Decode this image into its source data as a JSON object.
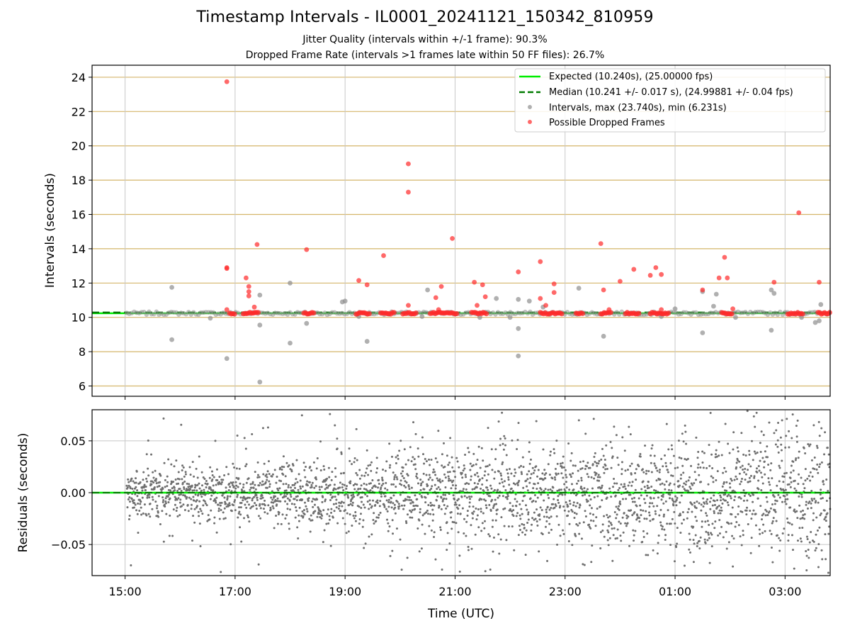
{
  "header": {
    "title": "Timestamp Intervals - IL0001_20241121_150342_810959",
    "subtitle_jitter": "Jitter Quality (intervals within +/-1 frame): 90.3%",
    "subtitle_dropped": "Dropped Frame Rate (intervals >1 frames late within 50 FF files): 26.7%"
  },
  "colors": {
    "expected": "#00ee00",
    "median": "#007a00",
    "intervals": "#8f8f8f",
    "dropped": "#ff2a2a",
    "ygrid_top": "#d4b56a",
    "grid": "#c8c8c8",
    "residuals": "#6f6f6f"
  },
  "chart_data": [
    {
      "type": "scatter",
      "ylabel": "Intervals (seconds)",
      "ylim": [
        5.4,
        24.7
      ],
      "yticks": [
        6,
        8,
        10,
        12,
        14,
        16,
        18,
        20,
        22,
        24
      ],
      "ytick_labels": [
        "6",
        "8",
        "10",
        "12",
        "14",
        "16",
        "18",
        "20",
        "22",
        "24"
      ],
      "x_range_hours": [
        14.4,
        27.82
      ],
      "xticks": [
        15,
        17,
        19,
        21,
        23,
        25,
        27
      ],
      "grid": true,
      "legend_placement": "top-right",
      "legend": [
        "Expected (10.240s), (25.00000 fps)",
        "Median (10.241 +/- 0.017 s), (24.99881 +/- 0.04 fps)",
        "Intervals, max (23.740s), min (6.231s)",
        "Possible Dropped Frames"
      ],
      "expected_line": 10.24,
      "median_line": 10.241,
      "interval_outliers": [
        [
          15.85,
          11.75
        ],
        [
          15.85,
          8.7
        ],
        [
          16.55,
          9.95
        ],
        [
          16.85,
          7.6
        ],
        [
          17.45,
          11.3
        ],
        [
          17.45,
          9.55
        ],
        [
          17.45,
          6.23
        ],
        [
          18.0,
          12.0
        ],
        [
          18.0,
          8.5
        ],
        [
          18.3,
          9.65
        ],
        [
          18.95,
          10.9
        ],
        [
          19.0,
          10.95
        ],
        [
          19.25,
          10.05
        ],
        [
          19.4,
          8.6
        ],
        [
          20.4,
          10.05
        ],
        [
          20.5,
          11.6
        ],
        [
          21.45,
          10.0
        ],
        [
          21.75,
          11.1
        ],
        [
          22.0,
          10.0
        ],
        [
          22.15,
          11.05
        ],
        [
          22.15,
          9.35
        ],
        [
          22.15,
          7.75
        ],
        [
          22.35,
          10.95
        ],
        [
          22.6,
          10.6
        ],
        [
          23.25,
          11.7
        ],
        [
          23.7,
          8.9
        ],
        [
          24.75,
          10.05
        ],
        [
          25.0,
          10.5
        ],
        [
          25.5,
          11.5
        ],
        [
          25.5,
          9.1
        ],
        [
          25.7,
          10.65
        ],
        [
          25.75,
          11.35
        ],
        [
          26.1,
          10.0
        ],
        [
          26.75,
          11.6
        ],
        [
          26.75,
          9.25
        ],
        [
          26.8,
          11.4
        ],
        [
          27.3,
          10.0
        ],
        [
          27.55,
          9.7
        ],
        [
          27.62,
          9.8
        ],
        [
          27.65,
          10.75
        ]
      ],
      "dropped_frames": [
        [
          16.85,
          23.74
        ],
        [
          16.85,
          12.9
        ],
        [
          16.85,
          12.85
        ],
        [
          16.85,
          10.45
        ],
        [
          17.2,
          12.3
        ],
        [
          17.25,
          11.8
        ],
        [
          17.25,
          11.5
        ],
        [
          17.25,
          11.25
        ],
        [
          17.35,
          10.6
        ],
        [
          17.4,
          14.25
        ],
        [
          18.3,
          13.95
        ],
        [
          19.25,
          12.15
        ],
        [
          19.4,
          11.9
        ],
        [
          19.7,
          13.6
        ],
        [
          20.15,
          18.95
        ],
        [
          20.15,
          17.3
        ],
        [
          20.15,
          10.7
        ],
        [
          20.65,
          11.15
        ],
        [
          20.75,
          11.8
        ],
        [
          20.7,
          10.45
        ],
        [
          20.95,
          14.6
        ],
        [
          21.35,
          12.05
        ],
        [
          21.4,
          10.7
        ],
        [
          21.5,
          11.9
        ],
        [
          21.55,
          11.2
        ],
        [
          22.15,
          12.65
        ],
        [
          22.55,
          13.25
        ],
        [
          22.55,
          11.1
        ],
        [
          22.65,
          10.7
        ],
        [
          22.8,
          11.95
        ],
        [
          22.8,
          11.45
        ],
        [
          23.65,
          14.3
        ],
        [
          23.7,
          11.6
        ],
        [
          23.8,
          10.45
        ],
        [
          24.0,
          12.1
        ],
        [
          24.25,
          12.8
        ],
        [
          24.55,
          12.45
        ],
        [
          24.65,
          12.9
        ],
        [
          24.75,
          12.5
        ],
        [
          24.75,
          10.45
        ],
        [
          25.5,
          11.6
        ],
        [
          25.8,
          12.3
        ],
        [
          25.9,
          13.5
        ],
        [
          25.95,
          12.3
        ],
        [
          26.05,
          10.5
        ],
        [
          26.8,
          12.05
        ],
        [
          27.25,
          16.1
        ],
        [
          27.62,
          12.05
        ]
      ]
    },
    {
      "type": "scatter",
      "xlabel": "Time (UTC)",
      "ylabel": "Residuals (seconds)",
      "ylim": [
        -0.08,
        0.08
      ],
      "yticks": [
        -0.05,
        0.0,
        0.05
      ],
      "ytick_labels": [
        "−0.05",
        "0.00",
        "0.05"
      ],
      "x_range_hours": [
        14.4,
        27.82
      ],
      "xticks": [
        15,
        17,
        19,
        21,
        23,
        25,
        27
      ],
      "xtick_labels": [
        "15:00",
        "17:00",
        "19:00",
        "21:00",
        "23:00",
        "01:00",
        "03:00"
      ],
      "grid": true,
      "zero_line": 0.0
    }
  ]
}
